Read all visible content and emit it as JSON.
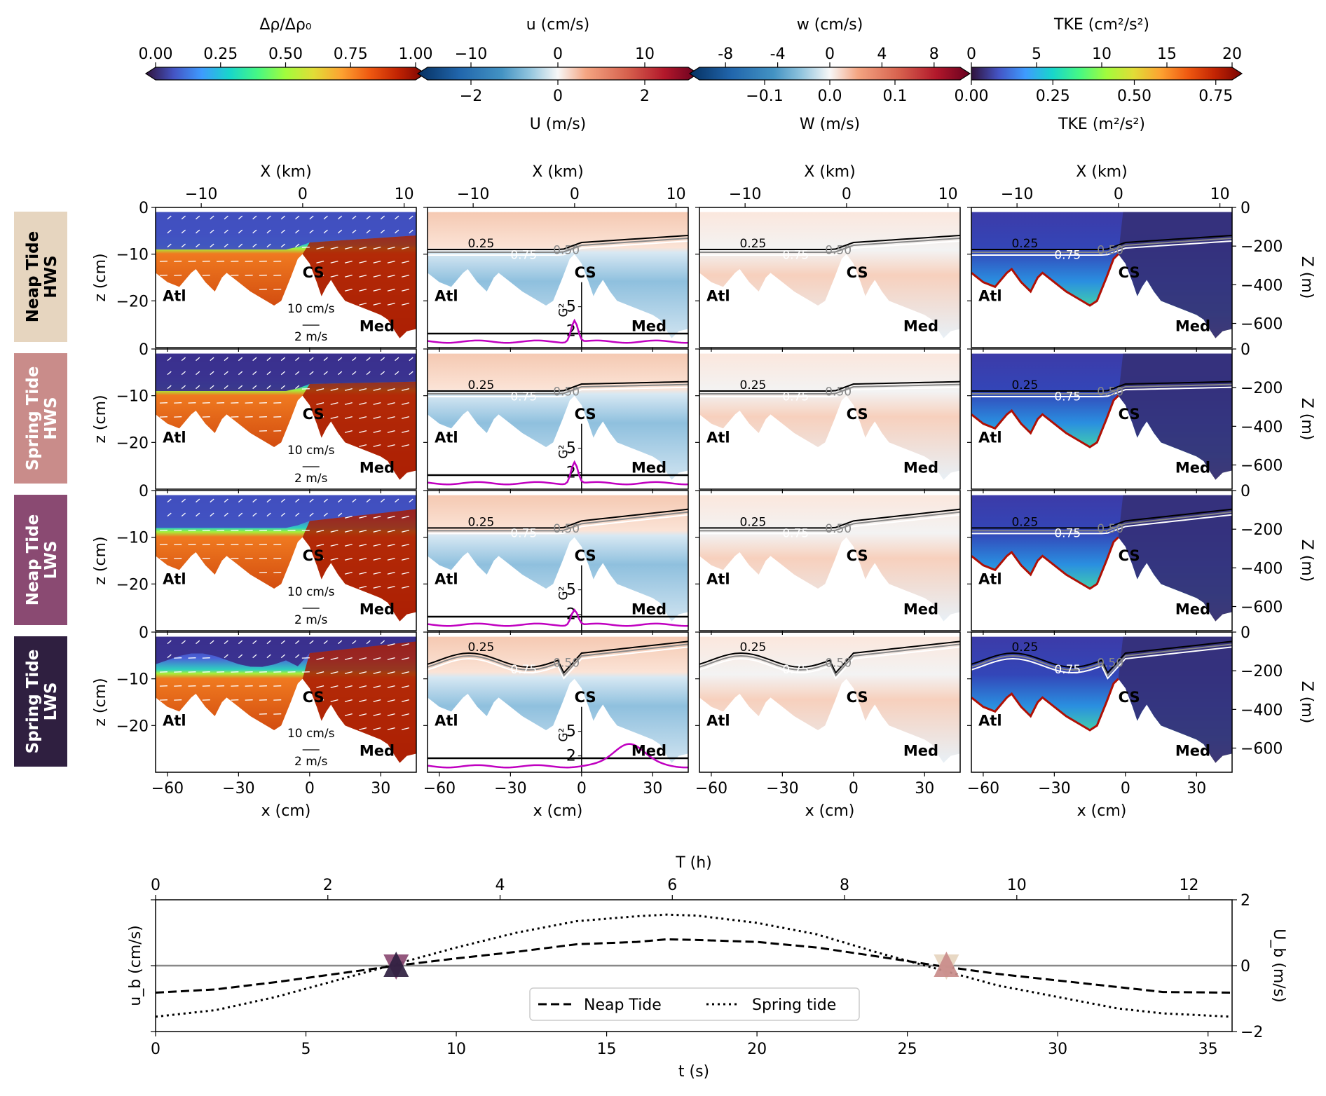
{
  "colorbars": [
    {
      "id": "density",
      "top_label": "Δρ/Δρ₀",
      "top_ticks": [
        "0.00",
        "0.25",
        "0.50",
        "0.75",
        "1.00"
      ],
      "top_range": [
        0,
        1
      ],
      "bottom_label": "",
      "bottom_ticks": [],
      "bottom_range": null,
      "colormap": "turbo",
      "extend": "both"
    },
    {
      "id": "u",
      "top_label": "u (cm/s)",
      "top_ticks": [
        "−10",
        "0",
        "10"
      ],
      "top_values": [
        -10,
        0,
        10
      ],
      "top_range": [
        -15,
        15
      ],
      "bottom_label": "U (m/s)",
      "bottom_ticks": [
        "−2",
        "0",
        "2"
      ],
      "bottom_values": [
        -2,
        0,
        2
      ],
      "bottom_range": [
        -3,
        3
      ],
      "colormap": "RdBu_r",
      "extend": "both"
    },
    {
      "id": "w",
      "top_label": "w (cm/s)",
      "top_ticks": [
        "-8",
        "-4",
        "0",
        "4",
        "8"
      ],
      "top_values": [
        -8,
        -4,
        0,
        4,
        8
      ],
      "top_range": [
        -10,
        10
      ],
      "bottom_label": "W (m/s)",
      "bottom_ticks": [
        "−0.1",
        "0.0",
        "0.1"
      ],
      "bottom_values": [
        -0.1,
        0.0,
        0.1
      ],
      "bottom_range": [
        -0.2,
        0.2
      ],
      "colormap": "RdBu_r",
      "extend": "both"
    },
    {
      "id": "tke",
      "top_label": "TKE (cm²/s²)",
      "top_ticks": [
        "0",
        "5",
        "10",
        "15",
        "20"
      ],
      "top_values": [
        0,
        5,
        10,
        15,
        20
      ],
      "top_range": [
        0,
        20
      ],
      "bottom_label": "TKE (m²/s²)",
      "bottom_ticks": [
        "0.00",
        "0.25",
        "0.50",
        "0.75"
      ],
      "bottom_values": [
        0,
        0.25,
        0.5,
        0.75
      ],
      "bottom_range": [
        0,
        0.8
      ],
      "colormap": "turbo",
      "extend": "max"
    }
  ],
  "row_labels": [
    {
      "line1": "Neap Tide",
      "line2": "HWS",
      "bg": "#e6d5bf",
      "fg": "#000000"
    },
    {
      "line1": "Spring Tide",
      "line2": "HWS",
      "bg": "#c98c8a",
      "fg": "#ffffff"
    },
    {
      "line1": "Neap Tide",
      "line2": "LWS",
      "bg": "#8a4a72",
      "fg": "#ffffff"
    },
    {
      "line1": "Spring Tide",
      "line2": "LWS",
      "bg": "#2f1f40",
      "fg": "#ffffff"
    }
  ],
  "panel_axes": {
    "x_label": "x (cm)",
    "x_ticks": [
      "−60",
      "−30",
      "0",
      "30"
    ],
    "x_values": [
      -60,
      -30,
      0,
      30
    ],
    "x_range": [
      -65,
      45
    ],
    "top_x_label": "X (km)",
    "top_x_ticks": [
      "−10",
      "0",
      "10"
    ],
    "top_x_values": [
      -10,
      0,
      10
    ],
    "top_x_range": [
      -14.5,
      11.2
    ],
    "y_label": "z (cm)",
    "y_ticks": [
      "0",
      "−10",
      "−20"
    ],
    "y_values": [
      0,
      -10,
      -20
    ],
    "y_range": [
      -30,
      0
    ],
    "right_y_label": "Z (m)",
    "right_y_ticks": [
      "0",
      "−200",
      "−400",
      "−600"
    ],
    "right_y_values": [
      0,
      -200,
      -400,
      -600
    ],
    "right_y_range": [
      -725,
      0
    ]
  },
  "panel_annotations": {
    "atl": "Atl",
    "med": "Med",
    "cs": "CS",
    "scale_top": "10 cm/s",
    "scale_bottom": "2 m/s",
    "g2_label": "G²",
    "g2_ticks": [
      "5",
      "2"
    ],
    "contours": [
      "0.25",
      "0.50",
      "0.75"
    ]
  },
  "interface_depth_cm": {
    "rows": [
      {
        "row": "Neap Tide HWS",
        "atl_depth": -9,
        "med_depth": -6
      },
      {
        "row": "Spring Tide HWS",
        "atl_depth": -9,
        "med_depth": -7
      },
      {
        "row": "Neap Tide LWS",
        "atl_depth": -8,
        "med_depth": -4
      },
      {
        "row": "Spring Tide LWS",
        "atl_depth": -6,
        "med_depth": -2
      }
    ]
  },
  "chart_data": {
    "type": "line",
    "title": "",
    "xlabel": "t (s)",
    "ylabel": "u_b (cm/s)",
    "top_xlabel": "T (h)",
    "right_ylabel": "U_b (m/s)",
    "xlim": [
      0,
      35.8
    ],
    "x_ticks": [
      "0",
      "5",
      "10",
      "15",
      "20",
      "25",
      "30",
      "35"
    ],
    "top_x_ticks": [
      "0",
      "2",
      "4",
      "6",
      "8",
      "10",
      "12"
    ],
    "top_x_range": [
      0,
      12.5
    ],
    "right_y_ticks": [
      "2",
      "0",
      "−2"
    ],
    "right_y_values": [
      2,
      0,
      -2
    ],
    "ylim": [
      -2,
      2
    ],
    "zero_line": true,
    "legend": {
      "placement": "bottom-center",
      "entries": [
        "Neap Tide",
        "Spring tide"
      ]
    },
    "x": [
      0,
      2,
      4,
      6,
      8,
      10,
      12,
      14,
      16,
      17,
      18,
      20,
      22,
      24,
      26,
      28,
      30,
      32,
      33.5,
      35.8
    ],
    "series": [
      {
        "name": "Neap Tide",
        "style": "dashed",
        "values": [
          -0.82,
          -0.72,
          -0.5,
          -0.25,
          0.0,
          0.22,
          0.42,
          0.65,
          0.72,
          0.8,
          0.78,
          0.72,
          0.55,
          0.28,
          0.0,
          -0.25,
          -0.45,
          -0.65,
          -0.8,
          -0.82
        ]
      },
      {
        "name": "Spring tide",
        "style": "dotted",
        "values": [
          -1.55,
          -1.35,
          -0.95,
          -0.45,
          0.05,
          0.55,
          1.0,
          1.35,
          1.5,
          1.55,
          1.52,
          1.3,
          0.95,
          0.4,
          -0.1,
          -0.6,
          -0.95,
          -1.3,
          -1.45,
          -1.55
        ]
      }
    ],
    "markers": [
      {
        "label": "Neap Tide LWS",
        "t": 8.0,
        "value": 0,
        "shape": "triangle-down",
        "color": "#8a4a72"
      },
      {
        "label": "Spring Tide LWS",
        "t": 8.0,
        "value": 0,
        "shape": "triangle-up",
        "color": "#2f1f40"
      },
      {
        "label": "Neap Tide HWS",
        "t": 26.3,
        "value": 0,
        "shape": "triangle-down",
        "color": "#e6d5bf"
      },
      {
        "label": "Spring Tide HWS",
        "t": 26.3,
        "value": 0,
        "shape": "triangle-up",
        "color": "#c98c8a"
      }
    ]
  }
}
